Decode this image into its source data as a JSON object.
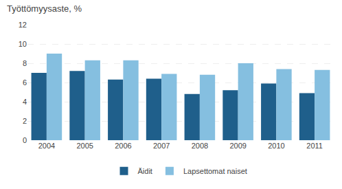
{
  "chart_data": {
    "type": "bar",
    "title": "Työttömyysaste, %",
    "categories": [
      "2004",
      "2005",
      "2006",
      "2007",
      "2008",
      "2009",
      "2010",
      "2011"
    ],
    "series": [
      {
        "name": "Äidit",
        "color": "#1f5f8b",
        "values": [
          7.0,
          7.2,
          6.3,
          6.4,
          4.8,
          5.2,
          5.9,
          4.9
        ]
      },
      {
        "name": "Lapsettomat naiset",
        "color": "#85bfe0",
        "values": [
          9.0,
          8.3,
          8.3,
          6.9,
          6.8,
          8.0,
          7.4,
          7.3
        ]
      }
    ],
    "ylim": [
      0,
      12
    ],
    "yticks": [
      0,
      2,
      4,
      6,
      8,
      10,
      12
    ],
    "grid": true,
    "legend": "bottom"
  }
}
